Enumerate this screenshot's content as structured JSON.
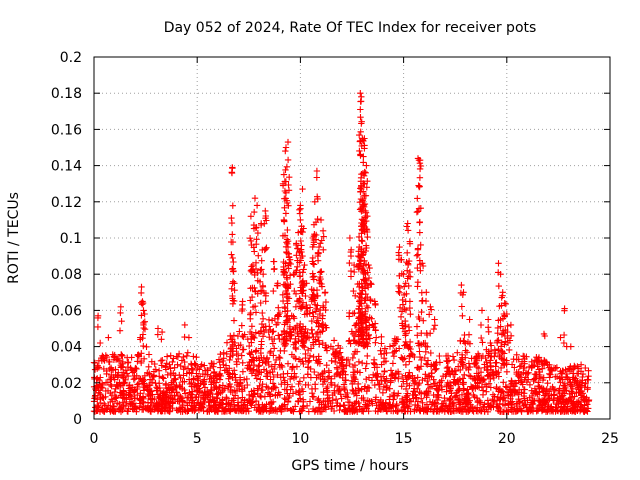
{
  "chart_data": {
    "type": "scatter",
    "title": "Day 052 of 2024, Rate Of TEC Index for receiver pots",
    "xlabel": "GPS time / hours",
    "ylabel": "ROTI / TECUs",
    "xlim": [
      0,
      25
    ],
    "ylim": [
      0,
      0.2
    ],
    "xticks": [
      0,
      5,
      10,
      15,
      20,
      25
    ],
    "xtick_labels": [
      "0",
      "5",
      "10",
      "15",
      "20",
      "25"
    ],
    "yticks": [
      0,
      0.02,
      0.04,
      0.06,
      0.08,
      0.1,
      0.12,
      0.14,
      0.16,
      0.18,
      0.2
    ],
    "ytick_labels": [
      "0",
      "0.02",
      "0.04",
      "0.06",
      "0.08",
      "0.1",
      "0.12",
      "0.14",
      "0.16",
      "0.18",
      "0.2"
    ],
    "grid": true,
    "marker": "+",
    "color": "#ff0000",
    "data_extent_x": [
      0,
      24
    ],
    "envelope": [
      [
        0,
        0.035
      ],
      [
        0.5,
        0.035
      ],
      [
        1,
        0.038
      ],
      [
        1.5,
        0.035
      ],
      [
        2,
        0.035
      ],
      [
        2.5,
        0.042
      ],
      [
        3,
        0.032
      ],
      [
        3.5,
        0.035
      ],
      [
        4,
        0.035
      ],
      [
        4.5,
        0.04
      ],
      [
        5,
        0.035
      ],
      [
        5.5,
        0.03
      ],
      [
        6,
        0.033
      ],
      [
        6.5,
        0.045
      ],
      [
        7,
        0.05
      ],
      [
        7.5,
        0.048
      ],
      [
        8,
        0.05
      ],
      [
        8.5,
        0.055
      ],
      [
        9,
        0.06
      ],
      [
        9.5,
        0.065
      ],
      [
        10,
        0.055
      ],
      [
        10.5,
        0.07
      ],
      [
        11,
        0.06
      ],
      [
        11.5,
        0.045
      ],
      [
        12,
        0.04
      ],
      [
        12.5,
        0.05
      ],
      [
        13,
        0.06
      ],
      [
        13.5,
        0.055
      ],
      [
        14,
        0.045
      ],
      [
        14.5,
        0.045
      ],
      [
        15,
        0.05
      ],
      [
        15.5,
        0.04
      ],
      [
        16,
        0.045
      ],
      [
        16.5,
        0.035
      ],
      [
        17,
        0.035
      ],
      [
        17.5,
        0.035
      ],
      [
        18,
        0.045
      ],
      [
        18.5,
        0.035
      ],
      [
        19,
        0.04
      ],
      [
        19.5,
        0.045
      ],
      [
        20,
        0.05
      ],
      [
        20.5,
        0.035
      ],
      [
        21,
        0.035
      ],
      [
        21.5,
        0.035
      ],
      [
        22,
        0.032
      ],
      [
        22.5,
        0.03
      ],
      [
        23,
        0.03
      ],
      [
        23.5,
        0.03
      ],
      [
        24,
        0.028
      ]
    ],
    "spikes": [
      [
        0.2,
        0.057
      ],
      [
        0.3,
        0.042
      ],
      [
        0.7,
        0.045
      ],
      [
        1.3,
        0.062
      ],
      [
        2.3,
        0.073
      ],
      [
        2.35,
        0.065
      ],
      [
        2.4,
        0.06
      ],
      [
        2.45,
        0.058
      ],
      [
        3.1,
        0.05
      ],
      [
        3.3,
        0.048
      ],
      [
        4.4,
        0.052
      ],
      [
        4.6,
        0.045
      ],
      [
        6.7,
        0.139
      ],
      [
        6.7,
        0.102
      ],
      [
        6.8,
        0.075
      ],
      [
        7.2,
        0.065
      ],
      [
        7.6,
        0.112
      ],
      [
        7.8,
        0.122
      ],
      [
        7.9,
        0.118
      ],
      [
        8.1,
        0.108
      ],
      [
        8.3,
        0.115
      ],
      [
        7.7,
        0.085
      ],
      [
        8.2,
        0.08
      ],
      [
        8.7,
        0.087
      ],
      [
        8.9,
        0.075
      ],
      [
        9.2,
        0.135
      ],
      [
        9.3,
        0.15
      ],
      [
        9.4,
        0.153
      ],
      [
        9.3,
        0.125
      ],
      [
        9.2,
        0.11
      ],
      [
        9.4,
        0.095
      ],
      [
        9.5,
        0.088
      ],
      [
        9.7,
        0.08
      ],
      [
        9.8,
        0.097
      ],
      [
        9.9,
        0.103
      ],
      [
        10.0,
        0.118
      ],
      [
        10.1,
        0.127
      ],
      [
        10.0,
        0.11
      ],
      [
        10.1,
        0.09
      ],
      [
        10.2,
        0.085
      ],
      [
        10.3,
        0.075
      ],
      [
        10.6,
        0.1
      ],
      [
        10.7,
        0.12
      ],
      [
        10.8,
        0.137
      ],
      [
        10.6,
        0.089
      ],
      [
        10.9,
        0.095
      ],
      [
        11.0,
        0.11
      ],
      [
        11.1,
        0.104
      ],
      [
        11.2,
        0.07
      ],
      [
        12.4,
        0.1
      ],
      [
        12.6,
        0.085
      ],
      [
        12.8,
        0.09
      ],
      [
        12.9,
        0.18
      ],
      [
        12.95,
        0.178
      ],
      [
        12.9,
        0.171
      ],
      [
        13.0,
        0.155
      ],
      [
        13.1,
        0.155
      ],
      [
        13.05,
        0.145
      ],
      [
        13.2,
        0.14
      ],
      [
        13.1,
        0.13
      ],
      [
        13.0,
        0.12
      ],
      [
        13.15,
        0.115
      ],
      [
        13.2,
        0.105
      ],
      [
        12.85,
        0.095
      ],
      [
        13.3,
        0.085
      ],
      [
        13.4,
        0.075
      ],
      [
        13.6,
        0.065
      ],
      [
        14.8,
        0.095
      ],
      [
        14.9,
        0.088
      ],
      [
        15.0,
        0.08
      ],
      [
        15.1,
        0.075
      ],
      [
        15.2,
        0.108
      ],
      [
        15.3,
        0.098
      ],
      [
        15.1,
        0.065
      ],
      [
        15.7,
        0.144
      ],
      [
        15.8,
        0.143
      ],
      [
        15.9,
        0.086
      ],
      [
        16.1,
        0.07
      ],
      [
        16.3,
        0.062
      ],
      [
        16.5,
        0.055
      ],
      [
        17.8,
        0.074
      ],
      [
        17.9,
        0.07
      ],
      [
        18.2,
        0.055
      ],
      [
        18.8,
        0.06
      ],
      [
        19.1,
        0.055
      ],
      [
        19.6,
        0.086
      ],
      [
        19.7,
        0.08
      ],
      [
        19.8,
        0.07
      ],
      [
        19.9,
        0.064
      ],
      [
        20.0,
        0.058
      ],
      [
        20.2,
        0.052
      ],
      [
        21.8,
        0.047
      ],
      [
        22.6,
        0.045
      ],
      [
        22.8,
        0.061
      ],
      [
        22.9,
        0.04
      ],
      [
        23.1,
        0.04
      ],
      [
        23.6,
        0.03
      ]
    ]
  }
}
